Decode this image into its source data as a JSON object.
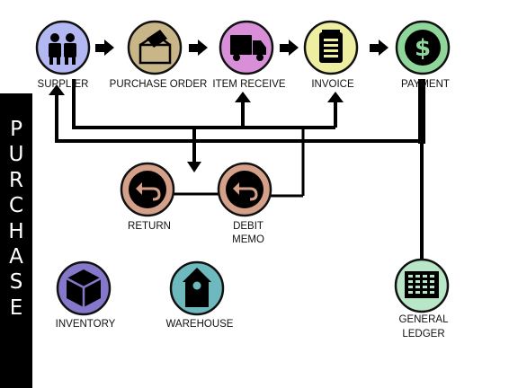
{
  "side_title": [
    "P",
    "U",
    "R",
    "C",
    "H",
    "A",
    "S",
    "E"
  ],
  "nodes": {
    "supplier": {
      "label": "SUPPLIER",
      "icon": "people-icon",
      "color": "#b3b8f2"
    },
    "purchase_order": {
      "label": "PURCHASE ORDER",
      "icon": "ballot-box-icon",
      "color": "#c9b688"
    },
    "item_receive": {
      "label": "ITEM RECEIVE",
      "icon": "truck-icon",
      "color": "#d98fd8"
    },
    "invoice": {
      "label": "INVOICE",
      "icon": "notepad-icon",
      "color": "#eeeea0"
    },
    "payment": {
      "label": "PAYMENT",
      "icon": "dollar-icon",
      "color": "#8fd69a"
    },
    "return": {
      "label": "RETURN",
      "icon": "return-arrow-icon",
      "color": "#d4a08a"
    },
    "debit_memo": {
      "label_lines": [
        "DEBIT",
        "MEMO"
      ],
      "icon": "return-arrow-icon",
      "color": "#d4a08a"
    },
    "inventory": {
      "label": "INVENTORY",
      "icon": "box-icon",
      "color": "#8577c9"
    },
    "warehouse": {
      "label": "WAREHOUSE",
      "icon": "birdhouse-icon",
      "color": "#6db9bd"
    },
    "general_ledger": {
      "label_lines": [
        "GENERAL",
        "LEDGER"
      ],
      "icon": "ledger-grid-icon",
      "color": "#b9e6c6"
    }
  }
}
